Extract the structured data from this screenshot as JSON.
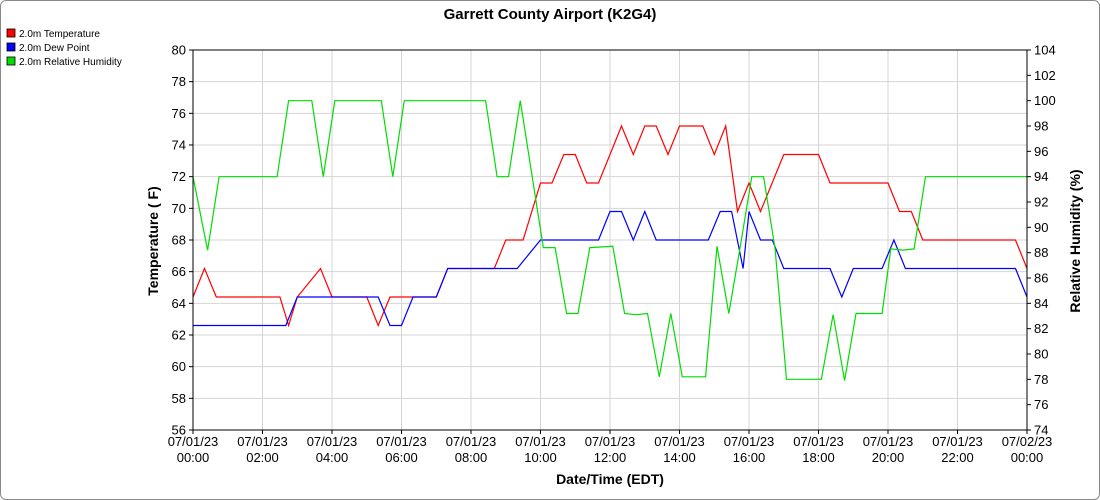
{
  "chart_data": {
    "type": "line",
    "title": "Garrett County Airport (K2G4)",
    "xlabel": "Date/Time (EDT)",
    "ylabel_left": "Temperature ( F)",
    "ylabel_right": "Relative Humidity (%)",
    "ylim_left": [
      56,
      80
    ],
    "ylim_right": [
      74,
      104
    ],
    "yticks_left": [
      56,
      58,
      60,
      62,
      64,
      66,
      68,
      70,
      72,
      74,
      76,
      78,
      80
    ],
    "yticks_right": [
      74,
      76,
      78,
      80,
      82,
      84,
      86,
      88,
      90,
      92,
      94,
      96,
      98,
      100,
      102,
      104
    ],
    "xlim_hours": [
      0,
      24
    ],
    "xticks": [
      {
        "hour": 0,
        "date": "07/01/23",
        "time": "00:00"
      },
      {
        "hour": 2,
        "date": "07/01/23",
        "time": "02:00"
      },
      {
        "hour": 4,
        "date": "07/01/23",
        "time": "04:00"
      },
      {
        "hour": 6,
        "date": "07/01/23",
        "time": "06:00"
      },
      {
        "hour": 8,
        "date": "07/01/23",
        "time": "08:00"
      },
      {
        "hour": 10,
        "date": "07/01/23",
        "time": "10:00"
      },
      {
        "hour": 12,
        "date": "07/01/23",
        "time": "12:00"
      },
      {
        "hour": 14,
        "date": "07/01/23",
        "time": "14:00"
      },
      {
        "hour": 16,
        "date": "07/01/23",
        "time": "16:00"
      },
      {
        "hour": 18,
        "date": "07/01/23",
        "time": "18:00"
      },
      {
        "hour": 20,
        "date": "07/01/23",
        "time": "20:00"
      },
      {
        "hour": 22,
        "date": "07/01/23",
        "time": "22:00"
      },
      {
        "hour": 24,
        "date": "07/02/23",
        "time": "00:00"
      }
    ],
    "grid": true,
    "legend_position": "top-left",
    "series": [
      {
        "name": "2.0m Temperature",
        "color": "#ff0000",
        "axis": "left",
        "points": [
          [
            0,
            64.4
          ],
          [
            0.33,
            66.2
          ],
          [
            0.67,
            64.4
          ],
          [
            2.5,
            64.4
          ],
          [
            2.75,
            62.6
          ],
          [
            3.0,
            64.4
          ],
          [
            3.67,
            66.2
          ],
          [
            4.0,
            64.4
          ],
          [
            5.0,
            64.4
          ],
          [
            5.33,
            62.6
          ],
          [
            5.67,
            64.4
          ],
          [
            7.0,
            64.4
          ],
          [
            7.33,
            66.2
          ],
          [
            8.67,
            66.2
          ],
          [
            9.0,
            68.0
          ],
          [
            9.5,
            68.0
          ],
          [
            10.0,
            71.6
          ],
          [
            10.33,
            71.6
          ],
          [
            10.67,
            73.4
          ],
          [
            11.0,
            73.4
          ],
          [
            11.33,
            71.6
          ],
          [
            11.67,
            71.6
          ],
          [
            12.33,
            75.2
          ],
          [
            12.67,
            73.4
          ],
          [
            13.0,
            75.2
          ],
          [
            13.33,
            75.2
          ],
          [
            13.67,
            73.4
          ],
          [
            14.0,
            75.2
          ],
          [
            14.67,
            75.2
          ],
          [
            15.0,
            73.4
          ],
          [
            15.33,
            75.2
          ],
          [
            15.67,
            69.8
          ],
          [
            16.0,
            71.6
          ],
          [
            16.33,
            69.8
          ],
          [
            17.0,
            73.4
          ],
          [
            18.0,
            73.4
          ],
          [
            18.33,
            71.6
          ],
          [
            20.0,
            71.6
          ],
          [
            20.33,
            69.8
          ],
          [
            20.67,
            69.8
          ],
          [
            21.0,
            68.0
          ],
          [
            23.67,
            68.0
          ],
          [
            24.0,
            66.2
          ]
        ]
      },
      {
        "name": "2.0m Dew Point",
        "color": "#0000ff",
        "axis": "left",
        "points": [
          [
            0,
            62.6
          ],
          [
            2.67,
            62.6
          ],
          [
            3.0,
            64.4
          ],
          [
            5.33,
            64.4
          ],
          [
            5.67,
            62.6
          ],
          [
            6.0,
            62.6
          ],
          [
            6.33,
            64.4
          ],
          [
            7.0,
            64.4
          ],
          [
            7.33,
            66.2
          ],
          [
            9.33,
            66.2
          ],
          [
            10.0,
            68.0
          ],
          [
            11.67,
            68.0
          ],
          [
            12.0,
            69.8
          ],
          [
            12.33,
            69.8
          ],
          [
            12.67,
            68.0
          ],
          [
            13.0,
            69.8
          ],
          [
            13.33,
            68.0
          ],
          [
            14.83,
            68.0
          ],
          [
            15.17,
            69.8
          ],
          [
            15.5,
            69.8
          ],
          [
            15.83,
            66.2
          ],
          [
            16.0,
            69.8
          ],
          [
            16.33,
            68.0
          ],
          [
            16.67,
            68.0
          ],
          [
            17.0,
            66.2
          ],
          [
            18.33,
            66.2
          ],
          [
            18.67,
            64.4
          ],
          [
            19.0,
            66.2
          ],
          [
            19.83,
            66.2
          ],
          [
            20.17,
            68.0
          ],
          [
            20.5,
            66.2
          ],
          [
            23.67,
            66.2
          ],
          [
            24.0,
            64.4
          ]
        ]
      },
      {
        "name": "2.0m Relative Humidity",
        "color": "#00dd00",
        "axis": "right",
        "points": [
          [
            0,
            94
          ],
          [
            0.42,
            88.2
          ],
          [
            0.75,
            94
          ],
          [
            2.42,
            94
          ],
          [
            2.75,
            100
          ],
          [
            3.42,
            100
          ],
          [
            3.75,
            94
          ],
          [
            4.08,
            100
          ],
          [
            5.42,
            100
          ],
          [
            5.75,
            94
          ],
          [
            6.08,
            100
          ],
          [
            8.42,
            100
          ],
          [
            8.75,
            94
          ],
          [
            9.08,
            94
          ],
          [
            9.42,
            100
          ],
          [
            10.08,
            88.4
          ],
          [
            10.42,
            88.4
          ],
          [
            10.75,
            83.2
          ],
          [
            11.08,
            83.2
          ],
          [
            11.42,
            88.4
          ],
          [
            12.08,
            88.5
          ],
          [
            12.42,
            83.2
          ],
          [
            12.75,
            83.1
          ],
          [
            13.08,
            83.2
          ],
          [
            13.42,
            78.2
          ],
          [
            13.75,
            83.2
          ],
          [
            14.08,
            78.2
          ],
          [
            14.75,
            78.2
          ],
          [
            15.08,
            88.5
          ],
          [
            15.42,
            83.2
          ],
          [
            15.75,
            88.5
          ],
          [
            16.08,
            94
          ],
          [
            16.42,
            94
          ],
          [
            16.75,
            88.3
          ],
          [
            17.08,
            78
          ],
          [
            18.08,
            78
          ],
          [
            18.42,
            83.1
          ],
          [
            18.75,
            77.9
          ],
          [
            19.08,
            83.2
          ],
          [
            19.83,
            83.2
          ],
          [
            20.08,
            88.3
          ],
          [
            20.42,
            88.2
          ],
          [
            20.75,
            88.3
          ],
          [
            21.08,
            94
          ],
          [
            24.0,
            94
          ]
        ]
      }
    ]
  }
}
